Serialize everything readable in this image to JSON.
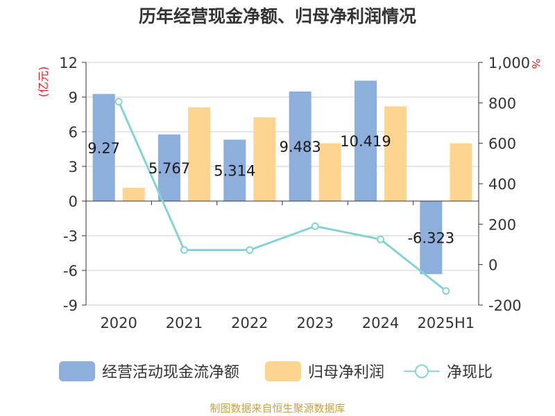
{
  "chart_data": {
    "type": "bar",
    "title": "历年经营现金净额、归母净利润情况",
    "categories": [
      "2020",
      "2021",
      "2022",
      "2023",
      "2024",
      "2025H1"
    ],
    "series": [
      {
        "name": "经营活动现金流净额",
        "kind": "bar",
        "axis": "left",
        "color": "#8eaedb",
        "values": [
          9.27,
          5.767,
          5.314,
          9.483,
          10.419,
          -6.323
        ],
        "labels": [
          "9.27",
          "5.767",
          "5.314",
          "9.483",
          "10.419",
          "-6.323"
        ]
      },
      {
        "name": "归母净利润",
        "kind": "bar",
        "axis": "left",
        "color": "#fdd591",
        "values": [
          1.15,
          8.1,
          7.25,
          5.0,
          8.2,
          5.0
        ]
      },
      {
        "name": "净现比",
        "kind": "line",
        "axis": "right",
        "color": "#86d1d4",
        "values": [
          806,
          72,
          72,
          190,
          125,
          -130
        ]
      }
    ],
    "y_left": {
      "min": -9,
      "max": 12,
      "ticks": [
        "12",
        "9",
        "6",
        "3",
        "0",
        "-3",
        "-6",
        "-9"
      ],
      "unit": "(亿元)"
    },
    "y_right": {
      "min": -200,
      "max": 1000,
      "ticks": [
        "1,000",
        "800",
        "600",
        "400",
        "200",
        "0",
        "-200"
      ],
      "unit": "%"
    },
    "grid": true,
    "legend_position": "bottom"
  },
  "source": "制图数据来自恒生聚源数据库",
  "colors": {
    "axis": "#333333",
    "grid": "#cccccc",
    "unit_text": "#e02020",
    "source_text": "#c8a04a"
  }
}
